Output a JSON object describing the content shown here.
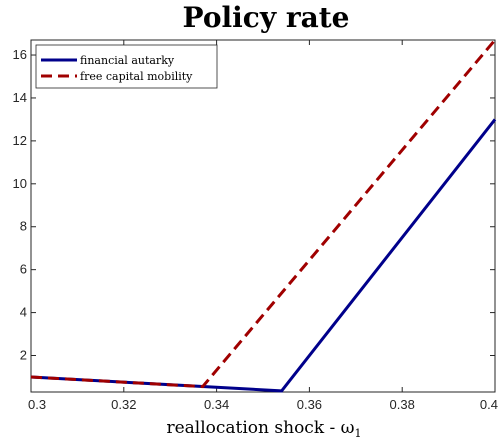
{
  "chart_data": {
    "type": "line",
    "title": "Policy rate",
    "xlabel": "reallocation shock - ω",
    "xlabel_subscript": "1",
    "ylabel": "",
    "xlim": [
      0.3,
      0.4
    ],
    "ylim": [
      0.3,
      16.7
    ],
    "xticks": [
      "0.3",
      "0.32",
      "0.34",
      "0.36",
      "0.38",
      "0.4"
    ],
    "yticks": [
      "2",
      "4",
      "6",
      "8",
      "10",
      "12",
      "14",
      "16"
    ],
    "grid": false,
    "legend_position": "top-left",
    "series": [
      {
        "name": "financial autarky",
        "color": "#00008b",
        "dash": "solid",
        "x": [
          0.3,
          0.354,
          0.4
        ],
        "y": [
          1.0,
          0.35,
          13.0
        ]
      },
      {
        "name": "free capital mobility",
        "color": "#a00000",
        "dash": "dashed",
        "x": [
          0.3,
          0.337,
          0.4
        ],
        "y": [
          1.0,
          0.55,
          16.7
        ]
      }
    ]
  }
}
